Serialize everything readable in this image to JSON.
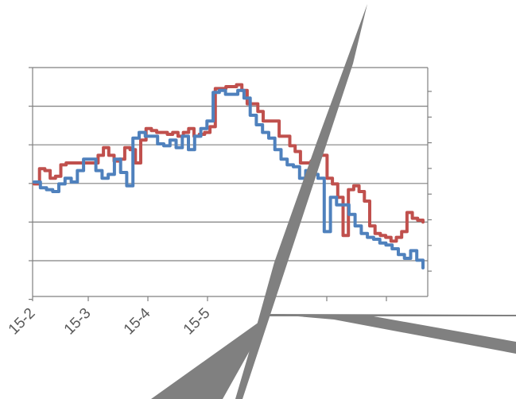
{
  "chart_data": {
    "type": "line",
    "title": "",
    "xlabel": "",
    "ylabel": "",
    "x_tick_labels": [
      "15-2",
      "15-3",
      "15-4",
      "15-5"
    ],
    "x_ticks_unlabeled_count": 3,
    "grid": true,
    "legend": "none",
    "colors": {
      "series_a": "#c0504d",
      "series_b": "#4f81bd",
      "grid": "#808080",
      "artifact": "#808080"
    },
    "series": [
      {
        "color": "#c0504d",
        "values": [
          2.95,
          3.35,
          3.3,
          3.1,
          3.15,
          3.45,
          3.5,
          3.5,
          3.5,
          3.5,
          3.5,
          3.5,
          3.7,
          3.9,
          3.7,
          3.55,
          3.6,
          3.9,
          3.85,
          3.5,
          4.1,
          4.4,
          4.35,
          4.3,
          4.3,
          4.25,
          4.3,
          4.2,
          4.3,
          4.4,
          4.2,
          4.25,
          4.3,
          4.45,
          5.45,
          5.45,
          5.5,
          5.5,
          5.55,
          5.4,
          5.05,
          5.05,
          4.85,
          4.6,
          4.6,
          4.6,
          4.2,
          4.2,
          3.95,
          3.8,
          3.5,
          3.5,
          3.55,
          3.7,
          3.7,
          3.1,
          2.95,
          2.6,
          1.6,
          2.8,
          2.9,
          2.75,
          2.5,
          1.85,
          1.65,
          1.6,
          1.55,
          1.45,
          1.55,
          1.7,
          2.2,
          2.05,
          2.0,
          1.95
        ]
      },
      {
        "color": "#4f81bd",
        "values": [
          3.0,
          2.85,
          2.8,
          2.75,
          2.95,
          3.1,
          3.0,
          3.3,
          3.6,
          3.6,
          3.3,
          3.1,
          3.2,
          3.6,
          3.25,
          2.9,
          4.15,
          4.3,
          4.2,
          4.2,
          4.0,
          3.95,
          4.1,
          3.9,
          4.2,
          3.85,
          4.2,
          4.4,
          4.6,
          5.35,
          5.4,
          5.3,
          5.3,
          5.4,
          5.2,
          4.75,
          4.5,
          4.3,
          4.15,
          3.85,
          3.6,
          3.45,
          3.4,
          3.1,
          3.3,
          3.2,
          3.1,
          1.7,
          2.6,
          2.4,
          2.4,
          2.15,
          1.85,
          1.65,
          1.55,
          1.5,
          1.4,
          1.35,
          1.25,
          1.1,
          1.0,
          1.2,
          0.95,
          0.75
        ]
      }
    ],
    "ylim": [
      0,
      6
    ]
  }
}
